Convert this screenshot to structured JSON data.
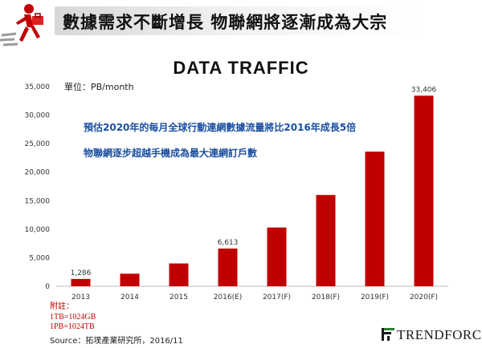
{
  "header": {
    "title": "數據需求不斷增長  物聯網將逐漸成為大宗",
    "logo_icon": "running-figure-with-red-bag"
  },
  "chart": {
    "unit_label": "單位：PB/month",
    "annotations": [
      "預估2020年的每月全球行動連網數據流量將比2016年成長5倍",
      "物聯網逐步超越手機成為最大連網訂戶數"
    ]
  },
  "notes": {
    "heading": "附註：",
    "lines": [
      "1TB=1024GB",
      "1PB=1024TB"
    ]
  },
  "source": "Source：拓墣產業研究所，2016/11",
  "brand": {
    "name": "TRENDFORCE",
    "mark_icon": "trendforce-logo-mark"
  },
  "colors": {
    "bar": "#c00000",
    "annotation": "#1a4fa0",
    "note": "#c00000"
  },
  "chart_data": {
    "type": "bar",
    "title": "DATA TRAFFIC",
    "xlabel": "",
    "ylabel": "",
    "categories": [
      "2013",
      "2014",
      "2015",
      "2016(E)",
      "2017(F)",
      "2018(F)",
      "2019(F)",
      "2020(F)"
    ],
    "values": [
      1286,
      2200,
      4000,
      6613,
      10300,
      16000,
      23600,
      33406
    ],
    "data_labels": [
      "1,286",
      "",
      "",
      "6,613",
      "",
      "",
      "",
      "33,406"
    ],
    "ylim": [
      0,
      35000
    ],
    "yticks": [
      0,
      5000,
      10000,
      15000,
      20000,
      25000,
      30000,
      35000
    ],
    "ytick_labels": [
      "0",
      "5,000",
      "10,000",
      "15,000",
      "20,000",
      "25,000",
      "30,000",
      "35,000"
    ],
    "grid": false,
    "legend": "none"
  }
}
